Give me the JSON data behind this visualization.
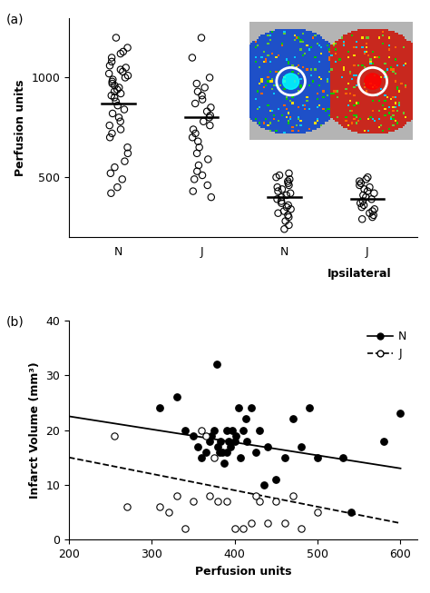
{
  "panel_a": {
    "ylabel": "Perfusion units",
    "ylim": [
      200,
      1300
    ],
    "yticks": [
      500,
      1000
    ],
    "contralateral_N": [
      1200,
      1150,
      1130,
      1120,
      1100,
      1080,
      1060,
      1050,
      1040,
      1030,
      1020,
      1010,
      1000,
      990,
      980,
      970,
      960,
      950,
      940,
      930,
      920,
      910,
      900,
      880,
      860,
      840,
      820,
      800,
      780,
      760,
      740,
      720,
      700,
      650,
      620,
      580,
      550,
      520,
      490,
      450,
      420
    ],
    "contralateral_J": [
      1200,
      1100,
      1000,
      970,
      950,
      930,
      910,
      890,
      870,
      850,
      830,
      810,
      800,
      780,
      760,
      740,
      720,
      700,
      680,
      650,
      620,
      590,
      560,
      530,
      510,
      490,
      460,
      430,
      400
    ],
    "ipsilateral_N": [
      520,
      510,
      500,
      490,
      480,
      470,
      460,
      450,
      440,
      430,
      420,
      410,
      400,
      390,
      380,
      370,
      360,
      350,
      340,
      330,
      320,
      310,
      300,
      280,
      260,
      240
    ],
    "ipsilateral_J": [
      500,
      490,
      480,
      470,
      460,
      450,
      440,
      430,
      420,
      410,
      400,
      390,
      380,
      370,
      360,
      350,
      340,
      330,
      320,
      310,
      300,
      290
    ],
    "median_CN": 870,
    "median_CJ": 800,
    "median_IN": 400,
    "median_IJ": 390
  },
  "panel_b": {
    "xlabel": "Perfusion units",
    "ylabel": "Infarct Volume (mm³)",
    "xlim": [
      200,
      620
    ],
    "ylim": [
      0,
      40
    ],
    "xticks": [
      200,
      300,
      400,
      500,
      600
    ],
    "yticks": [
      0,
      10,
      20,
      30,
      40
    ],
    "N_x": [
      310,
      330,
      340,
      350,
      355,
      360,
      365,
      370,
      372,
      375,
      378,
      380,
      382,
      383,
      385,
      387,
      390,
      390,
      393,
      395,
      397,
      400,
      402,
      405,
      407,
      410,
      413,
      415,
      420,
      425,
      430,
      435,
      440,
      450,
      460,
      470,
      480,
      490,
      500,
      530,
      540,
      580,
      600
    ],
    "N_y": [
      24,
      26,
      20,
      19,
      17,
      15,
      16,
      18,
      19,
      20,
      32,
      17,
      16,
      18,
      16,
      14,
      16,
      20,
      18,
      17,
      20,
      18,
      19,
      24,
      15,
      20,
      22,
      18,
      24,
      16,
      20,
      10,
      17,
      11,
      15,
      22,
      17,
      24,
      15,
      15,
      5,
      18,
      23
    ],
    "J_x": [
      255,
      270,
      310,
      320,
      330,
      340,
      350,
      360,
      365,
      370,
      375,
      380,
      390,
      400,
      410,
      420,
      425,
      430,
      440,
      450,
      460,
      470,
      480,
      500
    ],
    "J_y": [
      19,
      6,
      6,
      5,
      8,
      2,
      7,
      20,
      19,
      8,
      15,
      7,
      7,
      2,
      2,
      3,
      8,
      7,
      3,
      7,
      3,
      8,
      2,
      5
    ],
    "N_line_x": [
      200,
      600
    ],
    "N_line_y": [
      22.5,
      13.0
    ],
    "J_line_x": [
      200,
      600
    ],
    "J_line_y": [
      15.0,
      3.0
    ]
  },
  "figure_bg": "#ffffff",
  "panel_bg": "#ffffff",
  "text_color": "#000000"
}
